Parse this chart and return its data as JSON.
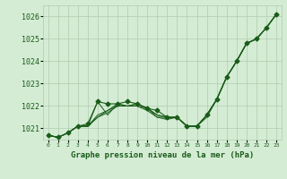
{
  "title": "Graphe pression niveau de la mer (hPa)",
  "xlabel_hours": [
    0,
    1,
    2,
    3,
    4,
    5,
    6,
    7,
    8,
    9,
    10,
    11,
    12,
    13,
    14,
    15,
    16,
    17,
    18,
    19,
    20,
    21,
    22,
    23
  ],
  "ylim": [
    1020.5,
    1026.5
  ],
  "yticks": [
    1021,
    1022,
    1023,
    1024,
    1025,
    1026
  ],
  "background_color": "#d4ecd4",
  "line_color": "#1a5c1a",
  "grid_color": "#b0cbb0",
  "lines": [
    [
      1020.7,
      1020.6,
      1020.8,
      1021.1,
      1021.1,
      1022.2,
      1021.6,
      1022.1,
      1022.0,
      1022.1,
      1021.9,
      1021.6,
      1021.5,
      1021.5,
      1021.1,
      1021.1,
      1021.6,
      1022.3,
      1023.3,
      1024.0,
      1024.8,
      1025.0,
      1025.5,
      1026.1
    ],
    [
      1020.7,
      1020.6,
      1020.8,
      1021.1,
      1021.1,
      1021.6,
      1021.8,
      1022.1,
      1022.0,
      1022.1,
      1021.9,
      1021.6,
      1021.5,
      1021.5,
      1021.1,
      1021.1,
      1021.6,
      1022.3,
      1023.3,
      1024.0,
      1024.8,
      1025.0,
      1025.5,
      1026.1
    ],
    [
      1020.7,
      1020.6,
      1020.8,
      1021.1,
      1021.1,
      1021.5,
      1021.8,
      1022.0,
      1022.0,
      1022.0,
      1021.9,
      1021.5,
      1021.5,
      1021.5,
      1021.1,
      1021.1,
      1021.6,
      1022.3,
      1023.3,
      1024.0,
      1024.8,
      1025.0,
      1025.5,
      1026.1
    ],
    [
      1020.7,
      1020.6,
      1020.8,
      1021.1,
      1021.1,
      1021.5,
      1021.7,
      1022.0,
      1022.0,
      1022.0,
      1021.8,
      1021.5,
      1021.4,
      1021.5,
      1021.1,
      1021.1,
      1021.5,
      1022.3,
      1023.3,
      1024.0,
      1024.8,
      1025.0,
      1025.5,
      1026.1
    ]
  ],
  "main_line": [
    1020.7,
    1020.6,
    1020.8,
    1021.1,
    1021.2,
    1022.2,
    1022.1,
    1022.1,
    1022.2,
    1022.1,
    1021.9,
    1021.8,
    1021.5,
    1021.5,
    1021.1,
    1021.1,
    1021.6,
    1022.3,
    1023.3,
    1024.0,
    1024.8,
    1025.0,
    1025.5,
    1026.1
  ]
}
